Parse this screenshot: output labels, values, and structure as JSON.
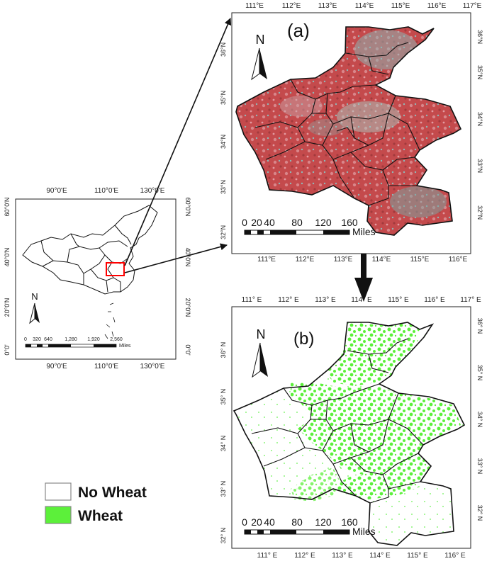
{
  "overview_map": {
    "top_ticks": [
      "90°0'E",
      "110°0'E",
      "130°0'E"
    ],
    "bottom_ticks": [
      "90°0'E",
      "110°0'E",
      "130°0'E"
    ],
    "left_ticks": [
      "60°0'N",
      "40°0'N",
      "20°0'N",
      "0°0'"
    ],
    "right_ticks": [
      "60°0'N",
      "40°0'N",
      "20°0'N",
      "0°0'"
    ],
    "north_label": "N",
    "scale_labels": [
      "0",
      "320",
      "640",
      "1,280",
      "1,920",
      "2,560"
    ],
    "scale_unit": "Miles",
    "study_area_color": "#ff0000"
  },
  "map_a": {
    "panel_label": "(a)",
    "top_ticks": [
      "111°E",
      "112°E",
      "113°E",
      "114°E",
      "115°E",
      "116°E",
      "117°E"
    ],
    "bottom_ticks": [
      "111°E",
      "112°E",
      "113°E",
      "114°E",
      "115°E",
      "116°E"
    ],
    "left_ticks": [
      "36°N",
      "35°N",
      "34°N",
      "33°N",
      "32°N"
    ],
    "right_ticks": [
      "36°N",
      "35°N",
      "34°N",
      "33°N",
      "32°N"
    ],
    "north_label": "N",
    "scale_labels": [
      "0",
      "20",
      "40",
      "80",
      "120",
      "160"
    ],
    "scale_unit": "Miles",
    "image_color": "#c44a4c"
  },
  "map_b": {
    "panel_label": "(b)",
    "top_ticks": [
      "111° E",
      "112° E",
      "113° E",
      "114° E",
      "115° E",
      "116° E",
      "117° E"
    ],
    "bottom_ticks": [
      "111° E",
      "112° E",
      "113° E",
      "114° E",
      "115° E",
      "116° E"
    ],
    "left_ticks": [
      "36° N",
      "35° N",
      "34° N",
      "33° N",
      "32° N"
    ],
    "right_ticks": [
      "36° N",
      "35° N",
      "34° N",
      "33° N",
      "32° N"
    ],
    "north_label": "N",
    "scale_labels": [
      "0",
      "20",
      "40",
      "80",
      "120",
      "160"
    ],
    "scale_unit": "Miles",
    "wheat_color": "#5cf03a"
  },
  "legend": {
    "items": [
      {
        "label": "No Wheat",
        "color": "#ffffff"
      },
      {
        "label": "Wheat",
        "color": "#5cf03a"
      }
    ]
  }
}
